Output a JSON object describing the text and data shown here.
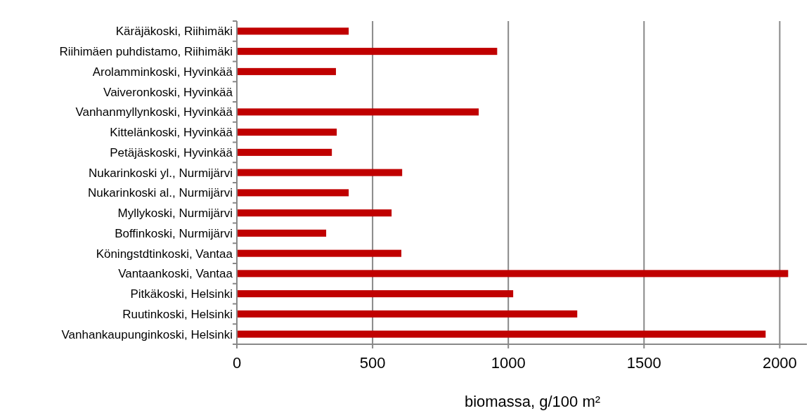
{
  "chart_data": {
    "type": "bar",
    "orientation": "horizontal",
    "xlabel": "biomassa, g/100 m²",
    "categories": [
      "Käräjäkoski, Riihimäki",
      "Riihimäen puhdistamo, Riihimäki",
      "Arolamminkoski, Hyvinkää",
      "Vaiveronkoski, Hyvinkää",
      "Vanhanmyllynkoski, Hyvinkää",
      "Kittelänkoski, Hyvinkää",
      "Petäjäskoski, Hyvinkää",
      "Nukarinkoski yl., Nurmijärvi",
      "Nukarinkoski al., Nurmijärvi",
      "Myllykoski, Nurmijärvi",
      "Boffinkoski, Nurmijärvi",
      "Köningstdtinkoski, Vantaa",
      "Vantaankoski, Vantaa",
      "Pitkäkoski, Helsinki",
      "Ruutinkoski, Helsinki",
      "Vanhankaupunginkoski, Helsinki"
    ],
    "values": [
      412,
      959,
      365,
      null,
      891,
      368,
      350,
      609,
      412,
      570,
      329,
      606,
      2031,
      1018,
      1254,
      1948
    ],
    "color": "#c00000",
    "xlim": [
      0,
      2100
    ],
    "xticks": [
      0,
      500,
      1000,
      1500,
      2000
    ],
    "grid": "x"
  }
}
